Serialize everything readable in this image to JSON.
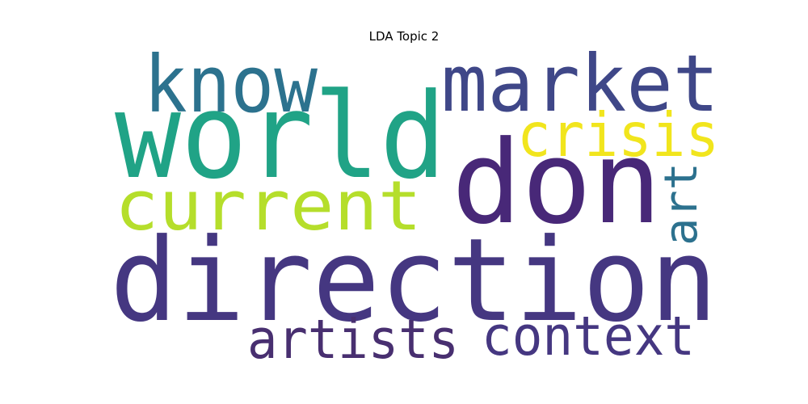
{
  "title": "LDA Topic 2",
  "words": [
    {
      "text": "direction",
      "color": "#453781"
    },
    {
      "text": "world",
      "color": "#20a386"
    },
    {
      "text": "don",
      "color": "#482878"
    },
    {
      "text": "market",
      "color": "#3f4788"
    },
    {
      "text": "know",
      "color": "#2c728e"
    },
    {
      "text": "current",
      "color": "#b5de2b"
    },
    {
      "text": "crisis",
      "color": "#f1e51d"
    },
    {
      "text": "art",
      "color": "#2c718e"
    },
    {
      "text": "artists",
      "color": "#482f70"
    },
    {
      "text": "context",
      "color": "#453781"
    }
  ]
}
